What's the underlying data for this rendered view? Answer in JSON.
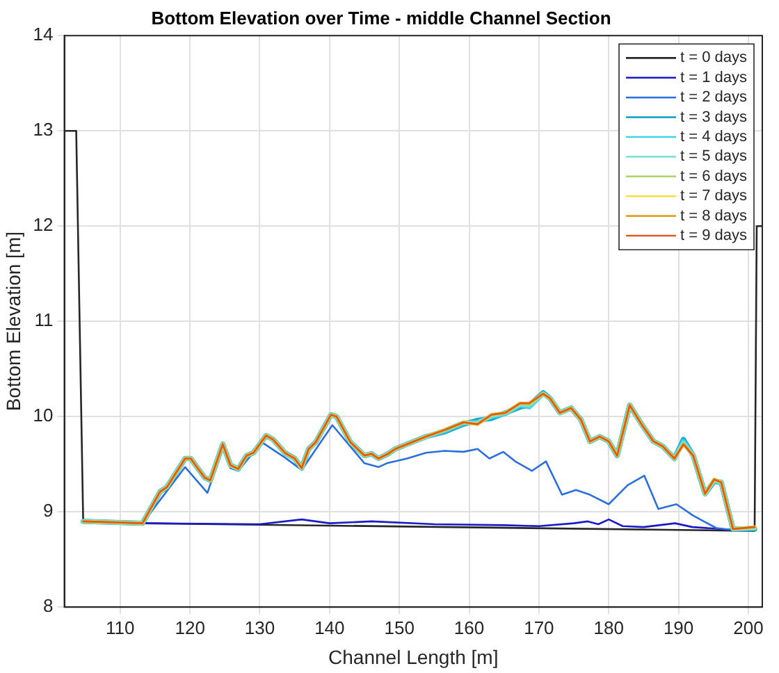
{
  "chart_data": {
    "type": "line",
    "title": "Bottom Elevation over Time - middle Channel Section",
    "xlabel": "Channel Length [m]",
    "ylabel": "Bottom Elevation [m]",
    "xlim": [
      102,
      202
    ],
    "xticks": [
      110,
      120,
      130,
      140,
      150,
      160,
      170,
      180,
      190,
      200
    ],
    "ylim": [
      8,
      14
    ],
    "yticks": [
      8,
      9,
      10,
      11,
      12,
      13,
      14
    ],
    "grid": true,
    "legend": "top right",
    "marker": "none",
    "line_style": "solid",
    "series": [
      {
        "name": "t = 0 days",
        "color": "#262626",
        "x": [
          102.1,
          103.7,
          104.7,
          113.2,
          200.9,
          201.2,
          202
        ],
        "values": [
          13,
          13,
          8.9,
          8.88,
          8.8,
          12,
          12
        ]
      },
      {
        "name": "t = 1 days",
        "color": "#1a1ac8",
        "x": [
          113.2,
          130,
          136,
          140,
          146,
          155,
          165,
          170,
          175,
          177,
          178.5,
          180,
          182,
          185,
          189.5,
          192,
          198,
          200.9
        ],
        "values": [
          8.88,
          8.87,
          8.92,
          8.88,
          8.9,
          8.87,
          8.86,
          8.85,
          8.88,
          8.9,
          8.87,
          8.92,
          8.85,
          8.84,
          8.88,
          8.84,
          8.81,
          8.81
        ]
      },
      {
        "name": "t = 2 days",
        "color": "#2a6fdc",
        "x": [
          113.2,
          119.3,
          122.5,
          124.7,
          125.8,
          126.9,
          130.3,
          133.6,
          136,
          140.4,
          145,
          147,
          148.2,
          151.1,
          153.8,
          156.5,
          159.2,
          161.2,
          162.9,
          164.9,
          166.6,
          169,
          171,
          173.3,
          175.3,
          177.3,
          180,
          182.7,
          185.1,
          187.1,
          189.7,
          192.1,
          195.4,
          197.8,
          200.9
        ],
        "values": [
          8.88,
          9.47,
          9.2,
          9.67,
          9.46,
          9.43,
          9.73,
          9.57,
          9.44,
          9.91,
          9.51,
          9.47,
          9.51,
          9.56,
          9.62,
          9.64,
          9.63,
          9.66,
          9.56,
          9.63,
          9.53,
          9.43,
          9.53,
          9.18,
          9.23,
          9.18,
          9.08,
          9.28,
          9.38,
          9.03,
          9.08,
          8.96,
          8.83,
          8.81,
          8.81
        ]
      },
      {
        "name": "t = 3 days",
        "color": "#1ea5c8",
        "x": [
          104.7,
          113.2,
          115.7,
          116.7,
          119.3,
          120.1,
          122.1,
          122.9,
          124.7,
          125.8,
          126.9,
          128.1,
          129.1,
          130.9,
          131.9,
          133.6,
          135,
          136,
          137,
          138,
          140.2,
          141,
          143,
          144,
          145,
          146,
          147,
          148.4,
          149.4,
          151.1,
          153.8,
          156.5,
          159.2,
          161.2,
          163.2,
          165.2,
          167.3,
          168.6,
          170.6,
          171.6,
          173,
          174.6,
          176,
          177.3,
          178.7,
          180,
          181.2,
          183,
          184.7,
          186.4,
          187.7,
          189.4,
          190.7,
          192.1,
          193.8,
          195.1,
          196.1,
          197.8,
          200.9
        ],
        "values": [
          8.9,
          8.88,
          9.21,
          9.26,
          9.56,
          9.56,
          9.36,
          9.33,
          9.71,
          9.49,
          9.45,
          9.59,
          9.62,
          9.8,
          9.76,
          9.62,
          9.56,
          9.46,
          9.66,
          9.73,
          10.02,
          10,
          9.73,
          9.66,
          9.59,
          9.61,
          9.56,
          9.61,
          9.66,
          9.71,
          9.79,
          9.84,
          9.92,
          9.96,
          9.98,
          10.04,
          10.1,
          10.12,
          10.25,
          10.19,
          10.04,
          10.09,
          9.97,
          9.74,
          9.79,
          9.74,
          9.59,
          10.12,
          9.92,
          9.74,
          9.69,
          9.56,
          9.76,
          9.59,
          9.19,
          9.32,
          9.31,
          8.82,
          8.82
        ]
      },
      {
        "name": "t = 4 days",
        "color": "#3fd3e6",
        "x": [
          104.7,
          113.2,
          115.7,
          116.7,
          119.3,
          120.1,
          122.1,
          122.9,
          124.7,
          125.8,
          126.9,
          128.1,
          129.1,
          130.9,
          131.9,
          133.6,
          135,
          136,
          137,
          138,
          140.2,
          141,
          143,
          144,
          145,
          146,
          147,
          148.4,
          149.4,
          151.1,
          153.8,
          156.5,
          159.2,
          161.2,
          163.2,
          165.2,
          167.3,
          168.6,
          170.6,
          171.6,
          173,
          174.6,
          176,
          177.3,
          178.7,
          180,
          181.2,
          183,
          184.7,
          186.4,
          187.7,
          189.4,
          190.7,
          192.1,
          193.8,
          195.1,
          196.1,
          197.8,
          200.9
        ],
        "values": [
          8.9,
          8.88,
          9.21,
          9.26,
          9.56,
          9.56,
          9.36,
          9.33,
          9.71,
          9.49,
          9.45,
          9.59,
          9.62,
          9.8,
          9.76,
          9.62,
          9.56,
          9.46,
          9.66,
          9.73,
          10.02,
          10,
          9.73,
          9.66,
          9.59,
          9.61,
          9.56,
          9.61,
          9.66,
          9.71,
          9.79,
          9.85,
          9.93,
          9.94,
          10,
          10.03,
          10.12,
          10.1,
          10.24,
          10.19,
          10.04,
          10.09,
          9.97,
          9.74,
          9.79,
          9.74,
          9.59,
          10.12,
          9.92,
          9.74,
          9.69,
          9.56,
          9.74,
          9.59,
          9.19,
          9.33,
          9.31,
          8.82,
          8.83
        ]
      },
      {
        "name": "t = 5 days",
        "color": "#7fe3dc",
        "x": [
          104.7,
          113.2,
          115.7,
          116.7,
          119.3,
          120.1,
          122.1,
          122.9,
          124.7,
          125.8,
          126.9,
          128.1,
          129.1,
          130.9,
          131.9,
          133.6,
          135,
          136,
          137,
          138,
          140.2,
          141,
          143,
          144,
          145,
          146,
          147,
          148.4,
          149.4,
          151.1,
          153.8,
          156.5,
          159.2,
          161.2,
          163.2,
          165.2,
          167.3,
          168.6,
          170.6,
          171.6,
          173,
          174.6,
          176,
          177.3,
          178.7,
          180,
          181.2,
          183,
          184.7,
          186.4,
          187.7,
          189.4,
          190.7,
          192.1,
          193.8,
          195.1,
          196.1,
          197.8,
          200.9
        ],
        "values": [
          8.9,
          8.88,
          9.21,
          9.26,
          9.56,
          9.56,
          9.36,
          9.33,
          9.71,
          9.49,
          9.45,
          9.59,
          9.62,
          9.8,
          9.76,
          9.62,
          9.56,
          9.46,
          9.66,
          9.73,
          10.02,
          10,
          9.73,
          9.66,
          9.59,
          9.61,
          9.56,
          9.61,
          9.66,
          9.71,
          9.79,
          9.86,
          9.94,
          9.93,
          10.01,
          10.04,
          10.13,
          10.12,
          10.24,
          10.19,
          10.04,
          10.09,
          9.97,
          9.74,
          9.79,
          9.74,
          9.59,
          10.12,
          9.92,
          9.74,
          9.69,
          9.56,
          9.72,
          9.59,
          9.19,
          9.33,
          9.31,
          8.82,
          8.83
        ]
      },
      {
        "name": "t = 6 days",
        "color": "#a9d66b",
        "x": [
          104.7,
          113.2,
          115.7,
          116.7,
          119.3,
          120.1,
          122.1,
          122.9,
          124.7,
          125.8,
          126.9,
          128.1,
          129.1,
          130.9,
          131.9,
          133.6,
          135,
          136,
          137,
          138,
          140.2,
          141,
          143,
          144,
          145,
          146,
          147,
          148.4,
          149.4,
          151.1,
          153.8,
          156.5,
          159.2,
          161.2,
          163.2,
          165.2,
          167.3,
          168.6,
          170.6,
          171.6,
          173,
          174.6,
          176,
          177.3,
          178.7,
          180,
          181.2,
          183,
          184.7,
          186.4,
          187.7,
          189.4,
          190.7,
          192.1,
          193.8,
          195.1,
          196.1,
          197.8,
          200.9
        ],
        "values": [
          8.9,
          8.88,
          9.21,
          9.26,
          9.56,
          9.56,
          9.36,
          9.33,
          9.71,
          9.49,
          9.45,
          9.59,
          9.62,
          9.8,
          9.76,
          9.62,
          9.56,
          9.46,
          9.66,
          9.73,
          10.02,
          10,
          9.73,
          9.66,
          9.59,
          9.61,
          9.56,
          9.61,
          9.66,
          9.71,
          9.79,
          9.86,
          9.94,
          9.92,
          10.02,
          10.04,
          10.14,
          10.13,
          10.24,
          10.19,
          10.04,
          10.09,
          9.97,
          9.74,
          9.79,
          9.74,
          9.59,
          10.12,
          9.92,
          9.74,
          9.69,
          9.56,
          9.71,
          9.59,
          9.19,
          9.34,
          9.31,
          8.82,
          8.84
        ]
      },
      {
        "name": "t = 7 days",
        "color": "#f2e23a",
        "x": [
          104.7,
          113.2,
          115.7,
          116.7,
          119.3,
          120.1,
          122.1,
          122.9,
          124.7,
          125.8,
          126.9,
          128.1,
          129.1,
          130.9,
          131.9,
          133.6,
          135,
          136,
          137,
          138,
          140.2,
          141,
          143,
          144,
          145,
          146,
          147,
          148.4,
          149.4,
          151.1,
          153.8,
          156.5,
          159.2,
          161.2,
          163.2,
          165.2,
          167.3,
          168.6,
          170.6,
          171.6,
          173,
          174.6,
          176,
          177.3,
          178.7,
          180,
          181.2,
          183,
          184.7,
          186.4,
          187.7,
          189.4,
          190.7,
          192.1,
          193.8,
          195.1,
          196.1,
          197.8,
          200.9
        ],
        "values": [
          8.9,
          8.88,
          9.21,
          9.26,
          9.56,
          9.56,
          9.36,
          9.33,
          9.71,
          9.49,
          9.45,
          9.59,
          9.62,
          9.8,
          9.76,
          9.62,
          9.56,
          9.46,
          9.66,
          9.73,
          10.02,
          10,
          9.73,
          9.66,
          9.59,
          9.61,
          9.56,
          9.61,
          9.66,
          9.71,
          9.79,
          9.86,
          9.94,
          9.92,
          10.02,
          10.04,
          10.14,
          10.14,
          10.24,
          10.19,
          10.04,
          10.09,
          9.97,
          9.74,
          9.79,
          9.74,
          9.59,
          10.12,
          9.92,
          9.74,
          9.69,
          9.56,
          9.71,
          9.59,
          9.19,
          9.34,
          9.31,
          8.82,
          8.84
        ]
      },
      {
        "name": "t = 8 days",
        "color": "#e0a020",
        "x": [
          104.7,
          113.2,
          115.7,
          116.7,
          119.3,
          120.1,
          122.1,
          122.9,
          124.7,
          125.8,
          126.9,
          128.1,
          129.1,
          130.9,
          131.9,
          133.6,
          135,
          136,
          137,
          138,
          140.2,
          141,
          143,
          144,
          145,
          146,
          147,
          148.4,
          149.4,
          151.1,
          153.8,
          156.5,
          159.2,
          161.2,
          163.2,
          165.2,
          167.3,
          168.6,
          170.6,
          171.6,
          173,
          174.6,
          176,
          177.3,
          178.7,
          180,
          181.2,
          183,
          184.7,
          186.4,
          187.7,
          189.4,
          190.7,
          192.1,
          193.8,
          195.1,
          196.1,
          197.8,
          200.9
        ],
        "values": [
          8.9,
          8.88,
          9.21,
          9.26,
          9.56,
          9.56,
          9.36,
          9.33,
          9.71,
          9.49,
          9.45,
          9.59,
          9.62,
          9.8,
          9.76,
          9.62,
          9.56,
          9.46,
          9.66,
          9.73,
          10.02,
          10,
          9.73,
          9.66,
          9.59,
          9.61,
          9.56,
          9.61,
          9.66,
          9.71,
          9.79,
          9.86,
          9.94,
          9.92,
          10.02,
          10.04,
          10.14,
          10.14,
          10.24,
          10.19,
          10.04,
          10.09,
          9.97,
          9.74,
          9.79,
          9.74,
          9.59,
          10.12,
          9.92,
          9.74,
          9.69,
          9.56,
          9.71,
          9.59,
          9.19,
          9.34,
          9.31,
          8.82,
          8.84
        ]
      },
      {
        "name": "t = 9 days",
        "color": "#e05a24",
        "x": [
          104.7,
          113.2,
          115.7,
          116.7,
          119.3,
          120.1,
          122.1,
          122.9,
          124.7,
          125.8,
          126.9,
          128.1,
          129.1,
          130.9,
          131.9,
          133.6,
          135,
          136,
          137,
          138,
          140.2,
          141,
          143,
          144,
          145,
          146,
          147,
          148.4,
          149.4,
          151.1,
          153.8,
          156.5,
          159.2,
          161.2,
          163.2,
          165.2,
          167.3,
          168.6,
          170.6,
          171.6,
          173,
          174.6,
          176,
          177.3,
          178.7,
          180,
          181.2,
          183,
          184.7,
          186.4,
          187.7,
          189.4,
          190.7,
          192.1,
          193.8,
          195.1,
          196.1,
          197.8,
          200.9
        ],
        "values": [
          8.9,
          8.88,
          9.21,
          9.26,
          9.56,
          9.56,
          9.36,
          9.33,
          9.71,
          9.49,
          9.45,
          9.59,
          9.62,
          9.8,
          9.76,
          9.62,
          9.56,
          9.46,
          9.66,
          9.73,
          10.02,
          10,
          9.73,
          9.66,
          9.59,
          9.61,
          9.56,
          9.61,
          9.66,
          9.71,
          9.79,
          9.86,
          9.94,
          9.92,
          10.02,
          10.04,
          10.14,
          10.14,
          10.24,
          10.19,
          10.04,
          10.09,
          9.97,
          9.74,
          9.79,
          9.74,
          9.59,
          10.12,
          9.92,
          9.74,
          9.69,
          9.56,
          9.71,
          9.59,
          9.19,
          9.34,
          9.31,
          8.82,
          8.84
        ]
      }
    ]
  }
}
